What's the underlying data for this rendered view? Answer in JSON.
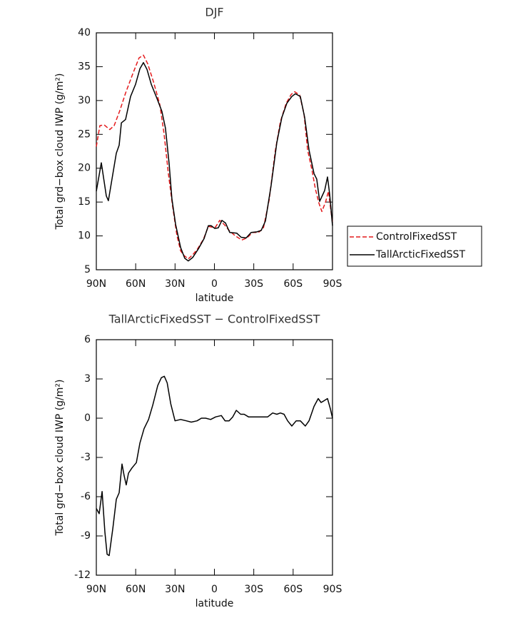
{
  "chart_data": [
    {
      "type": "line",
      "title": "DJF",
      "xlabel": "latitude",
      "ylabel": "Total grd−box cloud IWP (g/m²)",
      "xlim": [
        90,
        -90
      ],
      "xticks": [
        {
          "value": 90,
          "label": "90N"
        },
        {
          "value": 60,
          "label": "60N"
        },
        {
          "value": 30,
          "label": "30N"
        },
        0,
        {
          "value": -30,
          "label": "30S"
        },
        {
          "value": -60,
          "label": "60S"
        },
        {
          "value": -90,
          "label": "90S"
        }
      ],
      "ylim": [
        5,
        40
      ],
      "yticks": [
        5,
        10,
        15,
        20,
        25,
        30,
        35,
        40
      ],
      "legend": "right",
      "series": [
        {
          "name": "ControlFixedSST",
          "color": "#e41a1c",
          "linestyle": "dashed",
          "x": [
            90,
            87.3,
            84.0,
            79.7,
            76.4,
            72.1,
            67.7,
            62.3,
            57.4,
            54.1,
            50.8,
            46.5,
            41.6,
            38.4,
            35.1,
            31.8,
            28.6,
            25.8,
            23.1,
            19.9,
            16.6,
            12.8,
            8.4,
            4.6,
            1.9,
            -0.8,
            -4.1,
            -7.4,
            -11.2,
            -16.0,
            -20.9,
            -24.8,
            -29.1,
            -33.5,
            -37.3,
            -41.7,
            -46.5,
            -50.3,
            -54.7,
            -58.5,
            -61.2,
            -65.0,
            -68.3,
            -71.0,
            -74.3,
            -77.0,
            -79.7,
            -81.9,
            -84.7,
            -86.9,
            -90
          ],
          "values": [
            23.2,
            26.3,
            26.4,
            25.7,
            26.3,
            28.5,
            31.1,
            33.9,
            36.3,
            36.7,
            35.4,
            32.8,
            29.4,
            25.1,
            19.2,
            14.3,
            10.1,
            7.8,
            7.1,
            6.6,
            7.2,
            8.1,
            9.5,
            11.4,
            11.3,
            11.3,
            12.3,
            11.7,
            10.8,
            10.0,
            9.4,
            9.7,
            10.5,
            10.5,
            11.1,
            15.3,
            22.7,
            26.9,
            29.6,
            30.9,
            31.3,
            30.8,
            28.0,
            22.7,
            19.8,
            16.9,
            14.8,
            13.6,
            15.0,
            16.6,
            11.9
          ]
        },
        {
          "name": "TallArcticFixedSST",
          "color": "#000000",
          "linestyle": "solid",
          "x": [
            90,
            86.2,
            82.4,
            80.8,
            74.8,
            72.6,
            70.9,
            67.7,
            63.9,
            60.1,
            56.8,
            54.1,
            51.4,
            48.1,
            43.8,
            40,
            37.3,
            34.5,
            32.4,
            29.6,
            25.8,
            22.6,
            19.9,
            16.6,
            12.2,
            7.9,
            4.6,
            2.4,
            -0.3,
            -3.0,
            -5.7,
            -8.5,
            -11.7,
            -17.1,
            -20.4,
            -24.2,
            -28.0,
            -32.4,
            -35.6,
            -38.9,
            -43.2,
            -47.6,
            -51.4,
            -55.2,
            -59.0,
            -61.7,
            -65.5,
            -68.8,
            -72.1,
            -75.9,
            -78.0,
            -80.2,
            -84.0,
            -86.2,
            -87.8,
            -90
          ],
          "values": [
            16.6,
            20.8,
            15.9,
            15.2,
            22.2,
            23.4,
            26.7,
            27.2,
            30.6,
            32.4,
            34.7,
            35.6,
            34.6,
            32.4,
            30.3,
            28.4,
            25.9,
            20.6,
            15.5,
            11.7,
            8.3,
            6.7,
            6.3,
            6.8,
            8.1,
            9.6,
            11.5,
            11.5,
            11.1,
            11.2,
            12.3,
            11.9,
            10.5,
            10.4,
            9.8,
            9.7,
            10.5,
            10.6,
            10.8,
            12.2,
            17.4,
            23.8,
            27.5,
            29.6,
            30.6,
            31.0,
            30.6,
            27.5,
            22.7,
            19.2,
            18.4,
            15.1,
            16.7,
            18.7,
            16.2,
            11.5
          ]
        }
      ]
    },
    {
      "type": "line",
      "title": "TallArcticFixedSST − ControlFixedSST",
      "xlabel": "latitude",
      "ylabel": "Total grd−box cloud IWP (g/m²)",
      "xlim": [
        90,
        -90
      ],
      "xticks": [
        {
          "value": 90,
          "label": "90N"
        },
        {
          "value": 60,
          "label": "60N"
        },
        {
          "value": 30,
          "label": "30N"
        },
        0,
        {
          "value": -30,
          "label": "30S"
        },
        {
          "value": -60,
          "label": "60S"
        },
        {
          "value": -90,
          "label": "90S"
        }
      ],
      "ylim": [
        -12,
        6
      ],
      "yticks": [
        -12,
        -9,
        -6,
        -3,
        0,
        3,
        6
      ],
      "series": [
        {
          "color": "#000000",
          "linestyle": "solid",
          "x": [
            90,
            87.8,
            85.6,
            83.5,
            81.8,
            80.2,
            77.4,
            74.8,
            72.6,
            70.4,
            68.8,
            67.2,
            65.5,
            62.8,
            59.5,
            56.8,
            53.6,
            50.2,
            47.0,
            43.2,
            40.4,
            38.2,
            36.0,
            33.3,
            30.0,
            25.8,
            21.4,
            17.6,
            13.2,
            9.9,
            6.7,
            2.9,
            -1.0,
            -5.3,
            -8.1,
            -11.2,
            -14.0,
            -16.7,
            -20.0,
            -22.7,
            -26.0,
            -29.3,
            -32.4,
            -36.2,
            -40.6,
            -44.4,
            -47.6,
            -50.3,
            -53.1,
            -55.8,
            -59.0,
            -62.3,
            -65.5,
            -69.3,
            -72.1,
            -75.9,
            -79.1,
            -81.3,
            -83.0,
            -86.2,
            -88.4,
            -90
          ],
          "values": [
            -6.9,
            -7.3,
            -5.6,
            -8.7,
            -10.4,
            -10.5,
            -8.4,
            -6.2,
            -5.7,
            -3.5,
            -4.4,
            -5.1,
            -4.2,
            -3.8,
            -3.4,
            -1.9,
            -0.8,
            -0.1,
            1.0,
            2.5,
            3.1,
            3.2,
            2.7,
            1.1,
            -0.2,
            -0.1,
            -0.2,
            -0.3,
            -0.2,
            0.0,
            0.0,
            -0.1,
            0.1,
            0.2,
            -0.2,
            -0.2,
            0.1,
            0.6,
            0.3,
            0.3,
            0.1,
            0.1,
            0.1,
            0.1,
            0.1,
            0.4,
            0.3,
            0.4,
            0.3,
            -0.2,
            -0.6,
            -0.2,
            -0.2,
            -0.6,
            -0.2,
            0.9,
            1.5,
            1.2,
            1.3,
            1.5,
            0.7,
            0.0
          ]
        }
      ]
    }
  ]
}
